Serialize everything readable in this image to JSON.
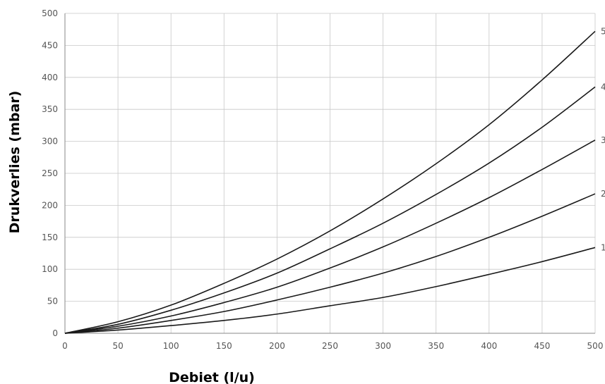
{
  "chart_data": {
    "type": "line",
    "title": "",
    "xlabel": "Debiet (l/u)",
    "ylabel": "Drukverlies (mbar)",
    "xlim": [
      0,
      500
    ],
    "ylim": [
      0,
      500
    ],
    "xticks": [
      0,
      50,
      100,
      150,
      200,
      250,
      300,
      350,
      400,
      450,
      500
    ],
    "yticks": [
      0,
      50,
      100,
      150,
      200,
      250,
      300,
      350,
      400,
      450,
      500
    ],
    "grid": true,
    "line_color": "#1a1a1a",
    "x": [
      0,
      50,
      100,
      150,
      200,
      250,
      300,
      350,
      400,
      450,
      500
    ],
    "series": [
      {
        "name": "1",
        "values": [
          0,
          5,
          12,
          20,
          30,
          43,
          56,
          73,
          92,
          112,
          134
        ]
      },
      {
        "name": "2",
        "values": [
          0,
          8,
          20,
          34,
          52,
          72,
          94,
          120,
          150,
          183,
          218
        ]
      },
      {
        "name": "3",
        "values": [
          0,
          11,
          27,
          48,
          72,
          102,
          135,
          172,
          212,
          256,
          302
        ]
      },
      {
        "name": "4",
        "values": [
          0,
          14,
          36,
          63,
          94,
          132,
          172,
          217,
          266,
          322,
          385
        ]
      },
      {
        "name": "5",
        "values": [
          0,
          18,
          44,
          78,
          116,
          160,
          210,
          265,
          326,
          396,
          472
        ]
      }
    ]
  }
}
